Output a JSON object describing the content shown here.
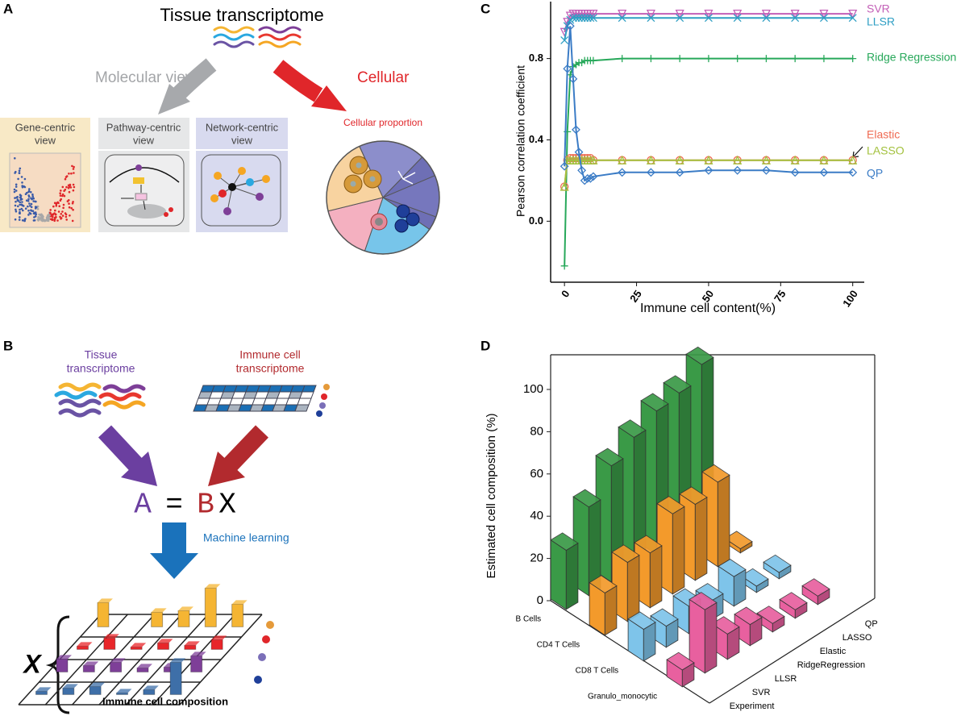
{
  "panels": {
    "A": {
      "label": "A",
      "title": "Tissue transcriptome",
      "molecular": "Molecular view",
      "cellular": "Cellular",
      "proportion": "Cellular proportion",
      "views": [
        [
          "Gene-centric",
          "view"
        ],
        [
          "Pathway-centric",
          "view"
        ],
        [
          "Network-centric",
          "view"
        ]
      ]
    },
    "B": {
      "label": "B",
      "tissue": [
        "Tissue",
        "transcriptome"
      ],
      "immune": [
        "Immune cell",
        "transcriptome"
      ],
      "equation": [
        "A",
        "=",
        "B",
        "X"
      ],
      "ml": "Machine learning",
      "x": "X",
      "composition": "Immune cell composition"
    }
  },
  "chart_data": [
    {
      "panel_label": "C",
      "type": "line",
      "ylabel": "Pearson correlation coefficient",
      "xlabel": "Immune cell content(%)",
      "x": [
        0,
        1,
        2,
        3,
        4,
        5,
        6,
        7,
        8,
        9,
        10,
        20,
        30,
        40,
        50,
        60,
        70,
        80,
        90,
        100
      ],
      "xlim": [
        -4.8,
        104
      ],
      "xticks": [
        0,
        25,
        50,
        75,
        100
      ],
      "ylim": [
        -0.3,
        1.08
      ],
      "yticks": [
        {
          "value": 0,
          "label": "0.0"
        },
        0.4,
        0.8
      ],
      "series": [
        {
          "name": "SVR",
          "color": "#c35fb7",
          "marker": "tri-down",
          "values": [
            0.93,
            0.98,
            1.01,
            1.02,
            1.02,
            1.02,
            1.02,
            1.02,
            1.02,
            1.02,
            1.02,
            1.02,
            1.02,
            1.02,
            1.02,
            1.02,
            1.02,
            1.02,
            1.02,
            1.02
          ]
        },
        {
          "name": "LLSR",
          "color": "#2f9fc4",
          "marker": "x",
          "values": [
            0.89,
            0.96,
            0.99,
            1.0,
            1.0,
            1.0,
            1.0,
            1.0,
            1.0,
            1.0,
            1.0,
            1.0,
            1.0,
            1.0,
            1.0,
            1.0,
            1.0,
            1.0,
            1.0,
            1.0
          ]
        },
        {
          "name": "Ridge Regression",
          "color": "#27a85a",
          "marker": "plus",
          "values": [
            -0.22,
            0.44,
            0.72,
            0.76,
            0.77,
            0.78,
            0.78,
            0.79,
            0.79,
            0.79,
            0.79,
            0.8,
            0.8,
            0.8,
            0.8,
            0.8,
            0.8,
            0.8,
            0.8,
            0.8
          ]
        },
        {
          "name": "Elastic",
          "color": "#ef6b53",
          "marker": "circle",
          "values": [
            0.17,
            0.3,
            0.31,
            0.31,
            0.31,
            0.31,
            0.31,
            0.31,
            0.31,
            0.31,
            0.3,
            0.3,
            0.3,
            0.3,
            0.3,
            0.3,
            0.3,
            0.3,
            0.3,
            0.3
          ]
        },
        {
          "name": "LASSO",
          "color": "#a3c13e",
          "marker": "tri",
          "values": [
            0.17,
            0.3,
            0.3,
            0.3,
            0.3,
            0.3,
            0.3,
            0.3,
            0.3,
            0.3,
            0.3,
            0.3,
            0.3,
            0.3,
            0.3,
            0.3,
            0.3,
            0.3,
            0.3,
            0.3
          ]
        },
        {
          "name": "QP",
          "color": "#3b7cc6",
          "marker": "diamond",
          "values": [
            0.27,
            0.75,
            0.96,
            0.7,
            0.45,
            0.34,
            0.25,
            0.2,
            0.21,
            0.21,
            0.22,
            0.24,
            0.24,
            0.24,
            0.25,
            0.25,
            0.25,
            0.24,
            0.24,
            0.24
          ]
        }
      ]
    },
    {
      "panel_label": "D",
      "type": "bar3d",
      "zlabel": "Estimated cell composition (%)",
      "categories": [
        "Experiment",
        "SVR",
        "LLSR",
        "RidgeRegression",
        "Elastic",
        "LASSO",
        "QP"
      ],
      "zlim": [
        0,
        100
      ],
      "zticks": [
        0,
        20,
        40,
        60,
        80,
        100
      ],
      "series": [
        {
          "name": "B Cells",
          "color": "#3a9a47",
          "values": [
            28,
            42,
            55,
            62,
            68,
            70,
            77
          ]
        },
        {
          "name": "CD4 T Cells",
          "color": "#f39a2b",
          "values": [
            20,
            28,
            26,
            38,
            36,
            40,
            2
          ]
        },
        {
          "name": "CD8 T Cells",
          "color": "#7ec4ea",
          "values": [
            15,
            10,
            13,
            9,
            14,
            3,
            3
          ]
        },
        {
          "name": "Granulo_monocytic",
          "color": "#e8609f",
          "values": [
            8,
            30,
            12,
            10,
            4,
            4,
            4
          ]
        }
      ]
    }
  ]
}
